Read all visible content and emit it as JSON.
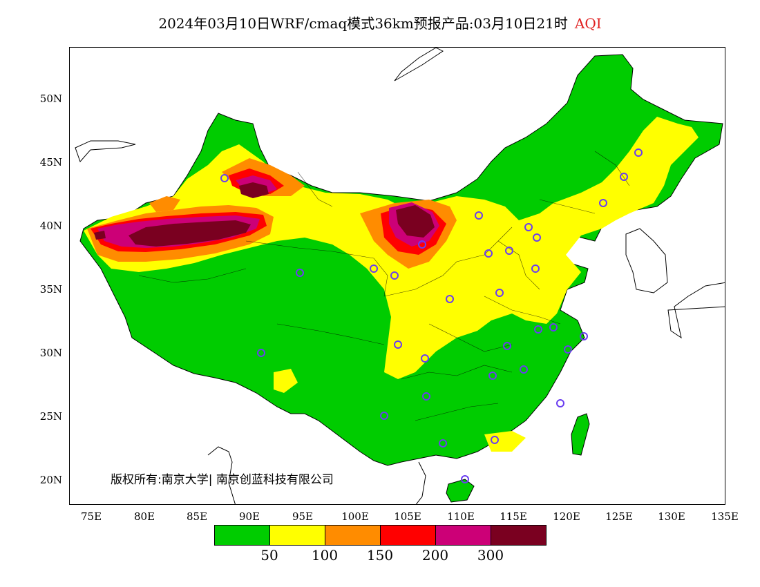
{
  "header": {
    "title": "2024年03月10日WRF/cmaq模式36km预报产品:03月10日21时",
    "variable": "AQI"
  },
  "map": {
    "lat_labels": [
      "50N",
      "45N",
      "40N",
      "35N",
      "30N",
      "25N",
      "20N"
    ],
    "lon_labels": [
      "75E",
      "80E",
      "85E",
      "90E",
      "95E",
      "100E",
      "105E",
      "110E",
      "115E",
      "120E",
      "125E",
      "130E",
      "135E"
    ],
    "copyright": "版权所有:南京大学| 南京创蓝科技有限公司"
  },
  "legend": {
    "colors": [
      "#00cc00",
      "#ffff00",
      "#ff8c00",
      "#ff0000",
      "#cc0077",
      "#7a0020"
    ],
    "ticks": [
      "50",
      "100",
      "150",
      "200",
      "300"
    ]
  }
}
